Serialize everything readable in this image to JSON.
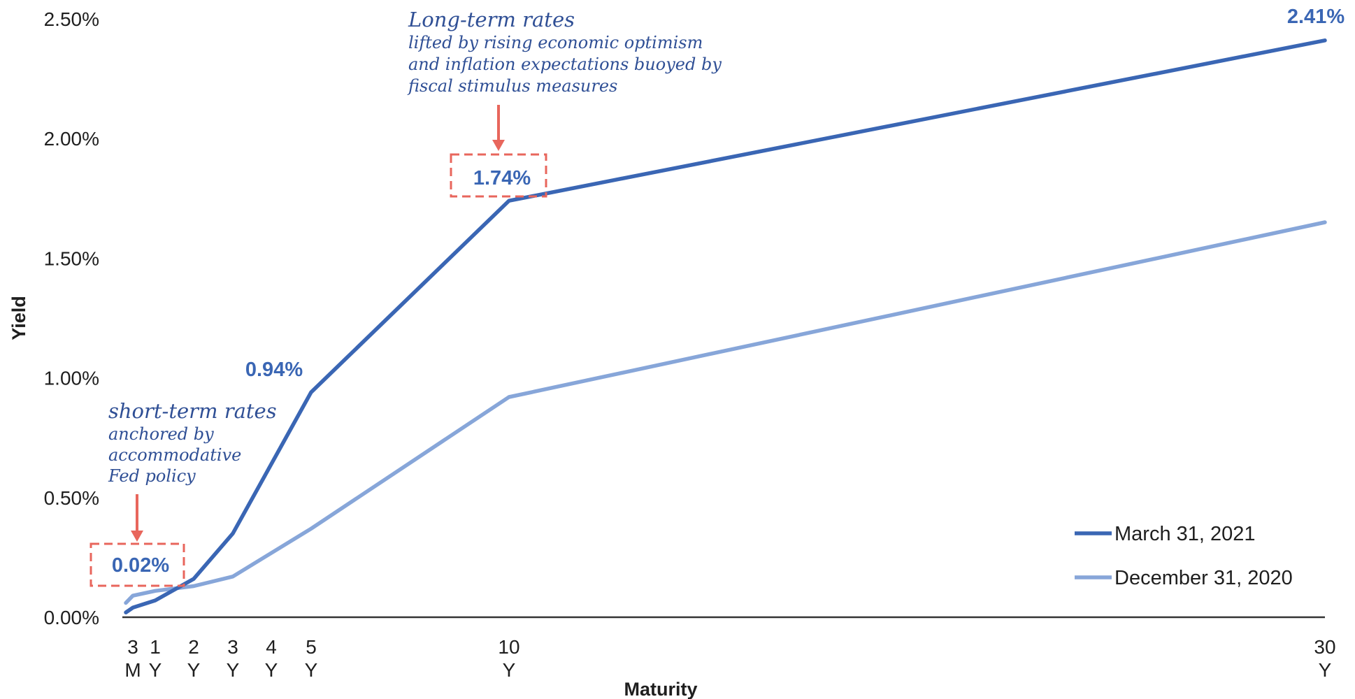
{
  "chart_data": {
    "type": "line",
    "xlabel": "Maturity",
    "ylabel": "Yield",
    "ylim": [
      0,
      2.5
    ],
    "y_ticks": [
      "0.00%",
      "0.50%",
      "1.00%",
      "1.50%",
      "2.00%",
      "2.50%"
    ],
    "x": [
      0.25,
      1,
      2,
      3,
      4,
      5,
      10,
      30
    ],
    "x_tick_labels": [
      {
        "x": 0.25,
        "top": "3",
        "bottom": "M"
      },
      {
        "x": 1,
        "top": "1",
        "bottom": "Y"
      },
      {
        "x": 2,
        "top": "2",
        "bottom": "Y"
      },
      {
        "x": 3,
        "top": "3",
        "bottom": "Y"
      },
      {
        "x": 4,
        "top": "4",
        "bottom": "Y"
      },
      {
        "x": 5,
        "top": "5",
        "bottom": "Y"
      },
      {
        "x": 10,
        "top": "10",
        "bottom": "Y"
      },
      {
        "x": 30,
        "top": "30",
        "bottom": "Y"
      }
    ],
    "series": [
      {
        "name": "March 31, 2021",
        "color": "#3a66b4",
        "values": [
          {
            "x": 0.0,
            "y": 0.02
          },
          {
            "x": 0.25,
            "y": 0.04
          },
          {
            "x": 1,
            "y": 0.07
          },
          {
            "x": 2,
            "y": 0.16
          },
          {
            "x": 3,
            "y": 0.35
          },
          {
            "x": 5,
            "y": 0.94
          },
          {
            "x": 10,
            "y": 1.74
          },
          {
            "x": 30,
            "y": 2.41
          }
        ]
      },
      {
        "name": "December 31, 2020",
        "color": "#87a6d9",
        "values": [
          {
            "x": 0.0,
            "y": 0.06
          },
          {
            "x": 0.25,
            "y": 0.09
          },
          {
            "x": 1,
            "y": 0.11
          },
          {
            "x": 2,
            "y": 0.13
          },
          {
            "x": 3,
            "y": 0.17
          },
          {
            "x": 5,
            "y": 0.37
          },
          {
            "x": 10,
            "y": 0.92
          },
          {
            "x": 30,
            "y": 1.65
          }
        ]
      }
    ],
    "data_labels": [
      {
        "text": "0.02%",
        "x": 0.25,
        "y": 0.02,
        "boxed": true
      },
      {
        "text": "0.94%",
        "x": 5,
        "y": 0.94,
        "boxed": false
      },
      {
        "text": "1.74%",
        "x": 10,
        "y": 1.74,
        "boxed": true
      },
      {
        "text": "2.41%",
        "x": 30,
        "y": 2.41,
        "boxed": false
      }
    ],
    "annotations": [
      {
        "title": "short-term rates",
        "lines": [
          "anchored by",
          "accommodative",
          "Fed policy"
        ]
      },
      {
        "title": "Long-term rates",
        "lines": [
          "lifted by rising economic optimism",
          "and inflation expectations buoyed by",
          "fiscal stimulus measures"
        ]
      }
    ],
    "legend_position": "bottom-right",
    "grid": false,
    "annotation_color": "#e8665c"
  }
}
